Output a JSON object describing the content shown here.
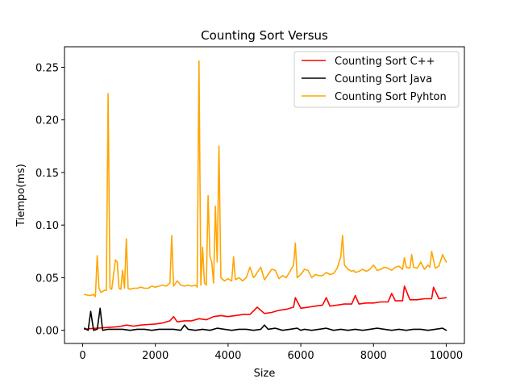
{
  "chart_data": {
    "type": "line",
    "title": "Counting Sort Versus",
    "xlabel": "Size",
    "ylabel": "Tiempo(ms)",
    "xlim": [
      -500,
      10500
    ],
    "ylim": [
      -0.0125,
      0.2695
    ],
    "xticks": [
      0,
      2000,
      4000,
      6000,
      8000,
      10000
    ],
    "xtick_labels": [
      "0",
      "2000",
      "4000",
      "6000",
      "8000",
      "10000"
    ],
    "yticks": [
      0.0,
      0.05,
      0.1,
      0.15,
      0.2,
      0.25
    ],
    "ytick_labels": [
      "0.00",
      "0.05",
      "0.10",
      "0.15",
      "0.20",
      "0.25"
    ],
    "grid": false,
    "legend_position": "top-right",
    "series": [
      {
        "name": "Counting Sort C++",
        "color": "#ff0000",
        "x": [
          50,
          200,
          400,
          600,
          800,
          1000,
          1200,
          1400,
          1600,
          1800,
          2000,
          2200,
          2400,
          2500,
          2600,
          2800,
          3000,
          3200,
          3400,
          3600,
          3800,
          4000,
          4200,
          4400,
          4600,
          4800,
          5000,
          5200,
          5400,
          5600,
          5800,
          5850,
          6000,
          6200,
          6400,
          6600,
          6700,
          6800,
          7000,
          7200,
          7400,
          7500,
          7600,
          7800,
          8000,
          8200,
          8400,
          8500,
          8600,
          8800,
          8850,
          9000,
          9200,
          9400,
          9600,
          9650,
          9800,
          10000
        ],
        "y": [
          0.001,
          0.0015,
          0.002,
          0.0025,
          0.003,
          0.0035,
          0.005,
          0.004,
          0.005,
          0.0055,
          0.006,
          0.007,
          0.009,
          0.013,
          0.008,
          0.009,
          0.009,
          0.011,
          0.01,
          0.013,
          0.014,
          0.013,
          0.014,
          0.015,
          0.015,
          0.022,
          0.016,
          0.017,
          0.019,
          0.02,
          0.022,
          0.031,
          0.021,
          0.022,
          0.023,
          0.024,
          0.031,
          0.023,
          0.024,
          0.025,
          0.025,
          0.033,
          0.025,
          0.026,
          0.026,
          0.027,
          0.027,
          0.035,
          0.028,
          0.028,
          0.042,
          0.029,
          0.029,
          0.03,
          0.03,
          0.041,
          0.03,
          0.031
        ]
      },
      {
        "name": "Counting Sort Java",
        "color": "#000000",
        "x": [
          50,
          150,
          220,
          300,
          400,
          480,
          550,
          700,
          900,
          1100,
          1300,
          1500,
          1700,
          1900,
          2100,
          2300,
          2500,
          2700,
          2800,
          2900,
          3100,
          3300,
          3500,
          3700,
          3900,
          4100,
          4300,
          4500,
          4700,
          4900,
          5000,
          5100,
          5300,
          5500,
          5700,
          5900,
          6000,
          6100,
          6300,
          6500,
          6700,
          6900,
          7100,
          7300,
          7500,
          7700,
          7900,
          8100,
          8300,
          8500,
          8700,
          8900,
          9100,
          9300,
          9500,
          9700,
          9900,
          10000
        ],
        "y": [
          0.002,
          0.0,
          0.018,
          0.0,
          0.001,
          0.021,
          0.0,
          0.001,
          0.001,
          0.001,
          0.0,
          0.001,
          0.001,
          0.0,
          0.001,
          0.001,
          0.001,
          0.0,
          0.005,
          0.001,
          0.0,
          0.001,
          0.0,
          0.002,
          0.001,
          0.0,
          0.001,
          0.001,
          0.0,
          0.001,
          0.005,
          0.001,
          0.002,
          0.0,
          0.001,
          0.002,
          0.0,
          0.001,
          0.0,
          0.001,
          0.002,
          0.0,
          0.001,
          0.0,
          0.001,
          0.0,
          0.001,
          0.002,
          0.001,
          0.0,
          0.001,
          0.0,
          0.001,
          0.001,
          0.0,
          0.001,
          0.002,
          0.0
        ]
      },
      {
        "name": "Counting Sort Pyhton",
        "color": "#ffa500",
        "x": [
          50,
          200,
          300,
          350,
          400,
          450,
          500,
          600,
          650,
          700,
          750,
          800,
          900,
          950,
          1000,
          1050,
          1100,
          1150,
          1200,
          1250,
          1300,
          1400,
          1500,
          1600,
          1700,
          1800,
          1900,
          2000,
          2100,
          2200,
          2300,
          2400,
          2450,
          2500,
          2600,
          2700,
          2800,
          2900,
          3000,
          3100,
          3150,
          3200,
          3250,
          3300,
          3350,
          3400,
          3450,
          3500,
          3550,
          3600,
          3650,
          3700,
          3750,
          3800,
          3900,
          4000,
          4100,
          4150,
          4200,
          4300,
          4400,
          4500,
          4600,
          4700,
          4750,
          4800,
          4900,
          5000,
          5100,
          5200,
          5300,
          5400,
          5500,
          5600,
          5700,
          5800,
          5850,
          5900,
          6000,
          6100,
          6200,
          6300,
          6400,
          6500,
          6600,
          6700,
          6800,
          6900,
          7000,
          7100,
          7150,
          7200,
          7300,
          7400,
          7450,
          7500,
          7600,
          7700,
          7800,
          7900,
          8000,
          8100,
          8200,
          8300,
          8400,
          8500,
          8600,
          8700,
          8800,
          8850,
          8900,
          9000,
          9050,
          9100,
          9200,
          9300,
          9400,
          9500,
          9550,
          9600,
          9700,
          9800,
          9900,
          10000
        ],
        "y": [
          0.034,
          0.033,
          0.034,
          0.032,
          0.071,
          0.04,
          0.036,
          0.038,
          0.038,
          0.225,
          0.04,
          0.039,
          0.067,
          0.065,
          0.04,
          0.039,
          0.057,
          0.04,
          0.087,
          0.04,
          0.039,
          0.04,
          0.04,
          0.041,
          0.04,
          0.04,
          0.042,
          0.041,
          0.042,
          0.043,
          0.042,
          0.045,
          0.09,
          0.042,
          0.047,
          0.043,
          0.042,
          0.043,
          0.042,
          0.043,
          0.041,
          0.256,
          0.043,
          0.079,
          0.045,
          0.043,
          0.128,
          0.07,
          0.065,
          0.045,
          0.118,
          0.065,
          0.175,
          0.05,
          0.047,
          0.049,
          0.047,
          0.07,
          0.048,
          0.05,
          0.047,
          0.05,
          0.06,
          0.05,
          0.052,
          0.055,
          0.06,
          0.048,
          0.053,
          0.058,
          0.057,
          0.049,
          0.052,
          0.05,
          0.056,
          0.062,
          0.083,
          0.05,
          0.053,
          0.058,
          0.057,
          0.05,
          0.053,
          0.052,
          0.052,
          0.055,
          0.053,
          0.054,
          0.059,
          0.07,
          0.09,
          0.062,
          0.058,
          0.056,
          0.057,
          0.055,
          0.056,
          0.058,
          0.056,
          0.058,
          0.062,
          0.057,
          0.058,
          0.06,
          0.059,
          0.057,
          0.06,
          0.061,
          0.058,
          0.069,
          0.06,
          0.059,
          0.072,
          0.06,
          0.059,
          0.065,
          0.058,
          0.062,
          0.06,
          0.075,
          0.059,
          0.061,
          0.072,
          0.065
        ]
      }
    ]
  }
}
